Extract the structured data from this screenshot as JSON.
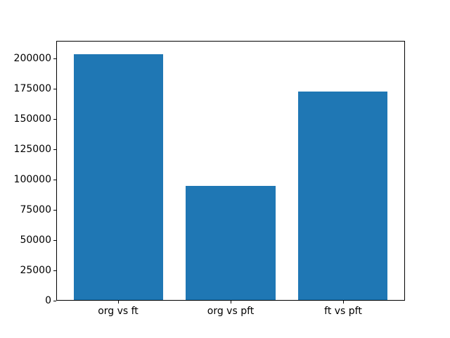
{
  "chart_data": {
    "type": "bar",
    "title": "",
    "xlabel": "",
    "ylabel": "",
    "categories": [
      "org vs ft",
      "org vs pft",
      "ft vs pft"
    ],
    "values": [
      204000,
      95000,
      173000
    ],
    "yticks": [
      0,
      25000,
      50000,
      75000,
      100000,
      125000,
      150000,
      175000,
      200000
    ],
    "ylim": [
      0,
      215000
    ],
    "xlim": [
      -0.55,
      2.55
    ],
    "bar_width": 0.8,
    "bar_color": "#1f77b4",
    "frame_color": "#000000",
    "tick_color": "#000000",
    "text_color": "#000000",
    "background": "#ffffff",
    "grid": false,
    "legend": null
  }
}
